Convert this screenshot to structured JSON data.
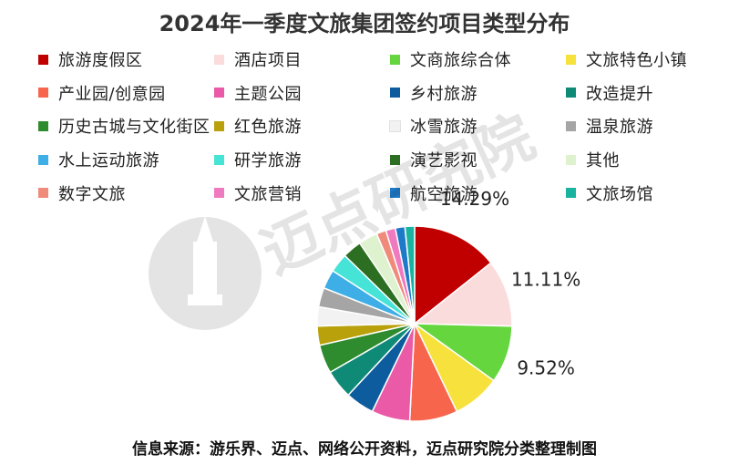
{
  "chart_data": {
    "type": "pie",
    "title": "2024年一季度文旅集团签约项目类型分布",
    "source": "信息来源：游乐界、迈点、网络公开资料，迈点研究院分类整理制图",
    "watermark": "迈点研究院",
    "slices": [
      {
        "label": "旅游度假区",
        "value": 14.29,
        "color": "#c00000",
        "data_label": "14.29%"
      },
      {
        "label": "酒店项目",
        "value": 11.11,
        "color": "#fbdcdc",
        "data_label": "11.11%"
      },
      {
        "label": "文商旅综合体",
        "value": 9.52,
        "color": "#66d63f",
        "data_label": "9.52%"
      },
      {
        "label": "文旅特色小镇",
        "value": 7.94,
        "color": "#f7e13c",
        "data_label": ""
      },
      {
        "label": "产业园/创意园",
        "value": 7.94,
        "color": "#f7654d",
        "data_label": ""
      },
      {
        "label": "主题公园",
        "value": 6.35,
        "color": "#ea5aa6",
        "data_label": ""
      },
      {
        "label": "乡村旅游",
        "value": 4.76,
        "color": "#0d5d9e",
        "data_label": ""
      },
      {
        "label": "改造提升",
        "value": 4.76,
        "color": "#0f8a77",
        "data_label": ""
      },
      {
        "label": "历史古城与文化街区",
        "value": 4.76,
        "color": "#2e8b2e",
        "data_label": ""
      },
      {
        "label": "红色旅游",
        "value": 3.17,
        "color": "#b9a10b",
        "data_label": ""
      },
      {
        "label": "冰雪旅游",
        "value": 3.17,
        "color": "#f2f2f2",
        "data_label": ""
      },
      {
        "label": "温泉旅游",
        "value": 3.17,
        "color": "#a5a5a5",
        "data_label": ""
      },
      {
        "label": "水上运动旅游",
        "value": 3.17,
        "color": "#3eaee6",
        "data_label": ""
      },
      {
        "label": "研学旅游",
        "value": 3.17,
        "color": "#46e3d7",
        "data_label": ""
      },
      {
        "label": "演艺影视",
        "value": 3.17,
        "color": "#2c6e22",
        "data_label": ""
      },
      {
        "label": "其他",
        "value": 3.17,
        "color": "#dff2cf",
        "data_label": ""
      },
      {
        "label": "数字文旅",
        "value": 1.59,
        "color": "#f08a7a",
        "data_label": ""
      },
      {
        "label": "文旅营销",
        "value": 1.59,
        "color": "#f07abf",
        "data_label": ""
      },
      {
        "label": "航空旅游",
        "value": 1.59,
        "color": "#1e7ac8",
        "data_label": ""
      },
      {
        "label": "文旅场馆",
        "value": 1.59,
        "color": "#19b3a0",
        "data_label": ""
      }
    ]
  }
}
